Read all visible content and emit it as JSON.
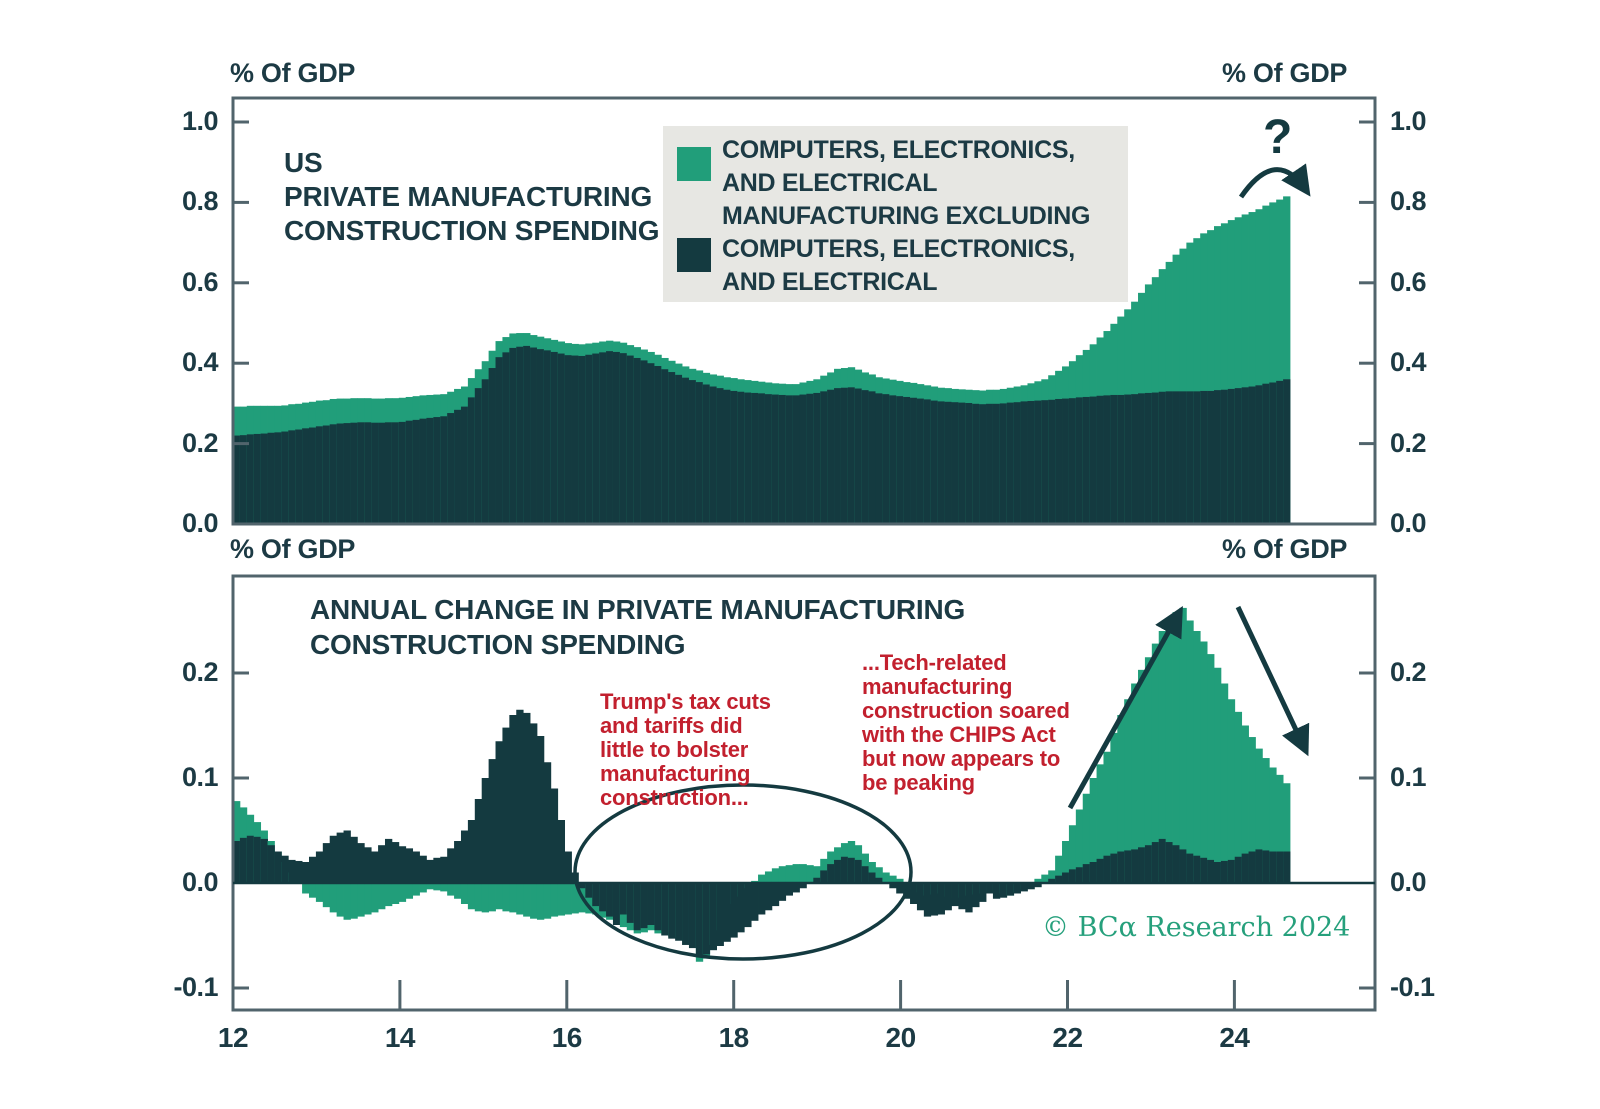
{
  "colors": {
    "green": "#219e7a",
    "dark": "#143a40",
    "border": "#51646c",
    "text": "#1c3a44",
    "red": "#c2202e",
    "legend_bg": "#e7e7e3",
    "brand_green": "#26a07c"
  },
  "top_chart": {
    "unit_left": "% Of GDP",
    "unit_right": "% Of GDP",
    "title": "US\nPRIVATE MANUFACTURING\nCONSTRUCTION SPENDING",
    "question_mark": "?"
  },
  "legend": {
    "items": [
      {
        "label": "COMPUTERS, ELECTRONICS,\nAND ELECTRICAL",
        "color_key": "green"
      },
      {
        "label": "MANUFACTURING EXCLUDING\nCOMPUTERS, ELECTRONICS,\nAND ELECTRICAL",
        "color_key": "dark"
      }
    ]
  },
  "bottom_chart": {
    "unit_left": "% Of GDP",
    "unit_right": "% Of GDP",
    "title": "ANNUAL CHANGE IN PRIVATE MANUFACTURING\nCONSTRUCTION SPENDING",
    "note_left": "Trump's tax cuts\nand tariffs did\nlittle to bolster\nmanufacturing\nconstruction...",
    "note_right": "...Tech-related\nmanufacturing\nconstruction soared\nwith the CHIPS Act\nbut now appears to\nbe peaking"
  },
  "copyright": "© BCα Research 2024",
  "chart_data": [
    {
      "type": "bar",
      "stacked": true,
      "title": "US PRIVATE MANUFACTURING CONSTRUCTION SPENDING",
      "ylabel": "% Of GDP",
      "x_start": 2012.0,
      "x_step_years": 0.08333,
      "x_tick_labels": [
        "12",
        "14",
        "16",
        "18",
        "20",
        "22",
        "24"
      ],
      "y_tick_labels": [
        "1.0",
        "0.8",
        "0.6",
        "0.4",
        "0.2",
        "0.0"
      ],
      "ylim": [
        0,
        1.06
      ],
      "grid": false,
      "legend_position": "top-center",
      "series": [
        {
          "name": "MANUFACTURING EXCLUDING COMPUTERS, ELECTRONICS, AND ELECTRICAL",
          "color_key": "dark",
          "values": [
            0.22,
            0.221,
            0.223,
            0.224,
            0.225,
            0.227,
            0.228,
            0.23,
            0.233,
            0.235,
            0.238,
            0.24,
            0.243,
            0.245,
            0.248,
            0.25,
            0.251,
            0.252,
            0.253,
            0.253,
            0.252,
            0.252,
            0.253,
            0.253,
            0.254,
            0.257,
            0.259,
            0.262,
            0.264,
            0.266,
            0.268,
            0.276,
            0.284,
            0.292,
            0.315,
            0.338,
            0.36,
            0.388,
            0.415,
            0.427,
            0.438,
            0.441,
            0.443,
            0.439,
            0.435,
            0.432,
            0.428,
            0.424,
            0.42,
            0.419,
            0.418,
            0.421,
            0.424,
            0.427,
            0.43,
            0.428,
            0.425,
            0.419,
            0.413,
            0.407,
            0.4,
            0.393,
            0.385,
            0.378,
            0.371,
            0.364,
            0.358,
            0.353,
            0.347,
            0.342,
            0.338,
            0.334,
            0.331,
            0.329,
            0.327,
            0.326,
            0.325,
            0.323,
            0.322,
            0.321,
            0.32,
            0.32,
            0.322,
            0.324,
            0.326,
            0.33,
            0.334,
            0.338,
            0.339,
            0.34,
            0.337,
            0.333,
            0.33,
            0.325,
            0.323,
            0.32,
            0.318,
            0.316,
            0.314,
            0.312,
            0.31,
            0.307,
            0.305,
            0.304,
            0.303,
            0.302,
            0.301,
            0.299,
            0.298,
            0.299,
            0.299,
            0.3,
            0.302,
            0.303,
            0.305,
            0.306,
            0.307,
            0.308,
            0.309,
            0.311,
            0.312,
            0.313,
            0.315,
            0.316,
            0.317,
            0.319,
            0.32,
            0.321,
            0.321,
            0.322,
            0.323,
            0.325,
            0.326,
            0.327,
            0.329,
            0.33,
            0.33,
            0.33,
            0.33,
            0.33,
            0.331,
            0.331,
            0.333,
            0.334,
            0.336,
            0.338,
            0.34,
            0.342,
            0.345,
            0.349,
            0.352,
            0.356,
            0.36
          ]
        },
        {
          "name": "COMPUTERS, ELECTRONICS, AND ELECTRICAL",
          "color_key": "green",
          "values": [
            0.072,
            0.071,
            0.071,
            0.07,
            0.069,
            0.067,
            0.066,
            0.065,
            0.065,
            0.064,
            0.064,
            0.064,
            0.064,
            0.063,
            0.063,
            0.062,
            0.061,
            0.061,
            0.06,
            0.06,
            0.06,
            0.06,
            0.06,
            0.06,
            0.06,
            0.059,
            0.059,
            0.058,
            0.057,
            0.056,
            0.055,
            0.053,
            0.052,
            0.05,
            0.048,
            0.047,
            0.045,
            0.043,
            0.04,
            0.038,
            0.036,
            0.034,
            0.032,
            0.031,
            0.031,
            0.03,
            0.03,
            0.03,
            0.03,
            0.029,
            0.029,
            0.028,
            0.027,
            0.027,
            0.026,
            0.026,
            0.026,
            0.026,
            0.027,
            0.027,
            0.028,
            0.028,
            0.028,
            0.028,
            0.028,
            0.028,
            0.028,
            0.029,
            0.029,
            0.03,
            0.031,
            0.031,
            0.032,
            0.031,
            0.031,
            0.03,
            0.029,
            0.029,
            0.028,
            0.028,
            0.028,
            0.028,
            0.03,
            0.032,
            0.034,
            0.039,
            0.043,
            0.048,
            0.049,
            0.05,
            0.047,
            0.044,
            0.042,
            0.04,
            0.039,
            0.039,
            0.038,
            0.037,
            0.037,
            0.036,
            0.035,
            0.035,
            0.034,
            0.034,
            0.033,
            0.033,
            0.033,
            0.034,
            0.034,
            0.035,
            0.035,
            0.036,
            0.037,
            0.039,
            0.04,
            0.044,
            0.048,
            0.052,
            0.061,
            0.07,
            0.08,
            0.092,
            0.105,
            0.117,
            0.13,
            0.145,
            0.16,
            0.177,
            0.195,
            0.212,
            0.23,
            0.25,
            0.27,
            0.287,
            0.305,
            0.322,
            0.34,
            0.355,
            0.37,
            0.381,
            0.392,
            0.4,
            0.408,
            0.414,
            0.42,
            0.425,
            0.43,
            0.434,
            0.438,
            0.443,
            0.448,
            0.451,
            0.455
          ]
        }
      ]
    },
    {
      "type": "bar",
      "stacked": false,
      "title": "ANNUAL CHANGE IN PRIVATE MANUFACTURING CONSTRUCTION SPENDING",
      "ylabel": "% Of GDP",
      "x_start": 2012.0,
      "x_step_years": 0.08333,
      "x_tick_labels": [
        "12",
        "14",
        "16",
        "18",
        "20",
        "22",
        "24"
      ],
      "y_tick_labels": [
        "0.2",
        "0.1",
        "0.0",
        "-0.1"
      ],
      "ylim": [
        -0.121,
        0.292
      ],
      "grid": false,
      "series": [
        {
          "name": "COMPUTERS, ELECTRONICS, AND ELECTRICAL",
          "color_key": "green",
          "values": [
            0.078,
            0.072,
            0.065,
            0.058,
            0.05,
            0.04,
            0.03,
            0.02,
            0.01,
            0.0,
            -0.01,
            -0.014,
            -0.018,
            -0.023,
            -0.028,
            -0.032,
            -0.035,
            -0.034,
            -0.032,
            -0.03,
            -0.028,
            -0.025,
            -0.022,
            -0.02,
            -0.018,
            -0.015,
            -0.012,
            -0.009,
            -0.006,
            -0.007,
            -0.008,
            -0.012,
            -0.015,
            -0.02,
            -0.025,
            -0.027,
            -0.028,
            -0.027,
            -0.025,
            -0.027,
            -0.028,
            -0.03,
            -0.032,
            -0.034,
            -0.035,
            -0.034,
            -0.032,
            -0.031,
            -0.03,
            -0.029,
            -0.028,
            -0.029,
            -0.03,
            -0.033,
            -0.035,
            -0.039,
            -0.042,
            -0.045,
            -0.048,
            -0.047,
            -0.045,
            -0.048,
            -0.05,
            -0.051,
            -0.052,
            -0.055,
            -0.058,
            -0.075,
            -0.072,
            -0.059,
            -0.045,
            -0.033,
            -0.02,
            -0.013,
            -0.005,
            0.002,
            0.008,
            0.011,
            0.014,
            0.016,
            0.017,
            0.018,
            0.018,
            0.017,
            0.016,
            0.023,
            0.03,
            0.034,
            0.038,
            0.04,
            0.036,
            0.028,
            0.02,
            0.015,
            0.01,
            0.007,
            0.004,
            -0.001,
            -0.006,
            -0.009,
            -0.012,
            -0.011,
            -0.01,
            -0.013,
            -0.015,
            -0.014,
            -0.012,
            -0.011,
            -0.01,
            -0.009,
            -0.008,
            -0.01,
            -0.012,
            -0.009,
            -0.006,
            -0.001,
            0.004,
            0.008,
            0.012,
            0.026,
            0.04,
            0.055,
            0.07,
            0.085,
            0.1,
            0.113,
            0.125,
            0.143,
            0.16,
            0.175,
            0.19,
            0.203,
            0.215,
            0.228,
            0.24,
            0.249,
            0.258,
            0.262,
            0.25,
            0.24,
            0.23,
            0.218,
            0.205,
            0.19,
            0.175,
            0.163,
            0.15,
            0.139,
            0.128,
            0.119,
            0.11,
            0.103,
            0.095
          ]
        },
        {
          "name": "MANUFACTURING EXCLUDING COMPUTERS, ELECTRONICS, AND ELECTRICAL",
          "color_key": "dark",
          "values": [
            0.04,
            0.043,
            0.045,
            0.044,
            0.042,
            0.036,
            0.03,
            0.026,
            0.022,
            0.021,
            0.02,
            0.025,
            0.03,
            0.038,
            0.045,
            0.048,
            0.05,
            0.044,
            0.038,
            0.034,
            0.03,
            0.036,
            0.042,
            0.039,
            0.035,
            0.033,
            0.03,
            0.026,
            0.022,
            0.024,
            0.025,
            0.033,
            0.04,
            0.05,
            0.06,
            0.08,
            0.1,
            0.118,
            0.135,
            0.148,
            0.16,
            0.165,
            0.162,
            0.152,
            0.14,
            0.115,
            0.09,
            0.06,
            0.03,
            0.01,
            -0.005,
            -0.014,
            -0.022,
            -0.027,
            -0.032,
            -0.04,
            -0.03,
            -0.038,
            -0.045,
            -0.043,
            -0.04,
            -0.045,
            -0.05,
            -0.053,
            -0.055,
            -0.059,
            -0.062,
            -0.07,
            -0.068,
            -0.064,
            -0.06,
            -0.056,
            -0.052,
            -0.047,
            -0.042,
            -0.036,
            -0.03,
            -0.026,
            -0.022,
            -0.017,
            -0.012,
            -0.009,
            -0.005,
            0.0,
            0.005,
            0.012,
            0.018,
            0.022,
            0.025,
            0.024,
            0.022,
            0.016,
            0.01,
            0.005,
            0.0,
            -0.005,
            -0.01,
            -0.015,
            -0.02,
            -0.026,
            -0.032,
            -0.031,
            -0.03,
            -0.026,
            -0.022,
            -0.025,
            -0.028,
            -0.023,
            -0.018,
            -0.01,
            -0.015,
            -0.014,
            -0.012,
            -0.01,
            -0.008,
            -0.006,
            -0.004,
            0.0,
            0.004,
            0.007,
            0.01,
            0.013,
            0.015,
            0.018,
            0.02,
            0.023,
            0.026,
            0.028,
            0.03,
            0.031,
            0.032,
            0.034,
            0.036,
            0.039,
            0.042,
            0.039,
            0.036,
            0.032,
            0.028,
            0.026,
            0.024,
            0.022,
            0.02,
            0.021,
            0.022,
            0.025,
            0.028,
            0.03,
            0.032,
            0.031,
            0.03,
            0.03,
            0.03
          ]
        }
      ]
    }
  ]
}
